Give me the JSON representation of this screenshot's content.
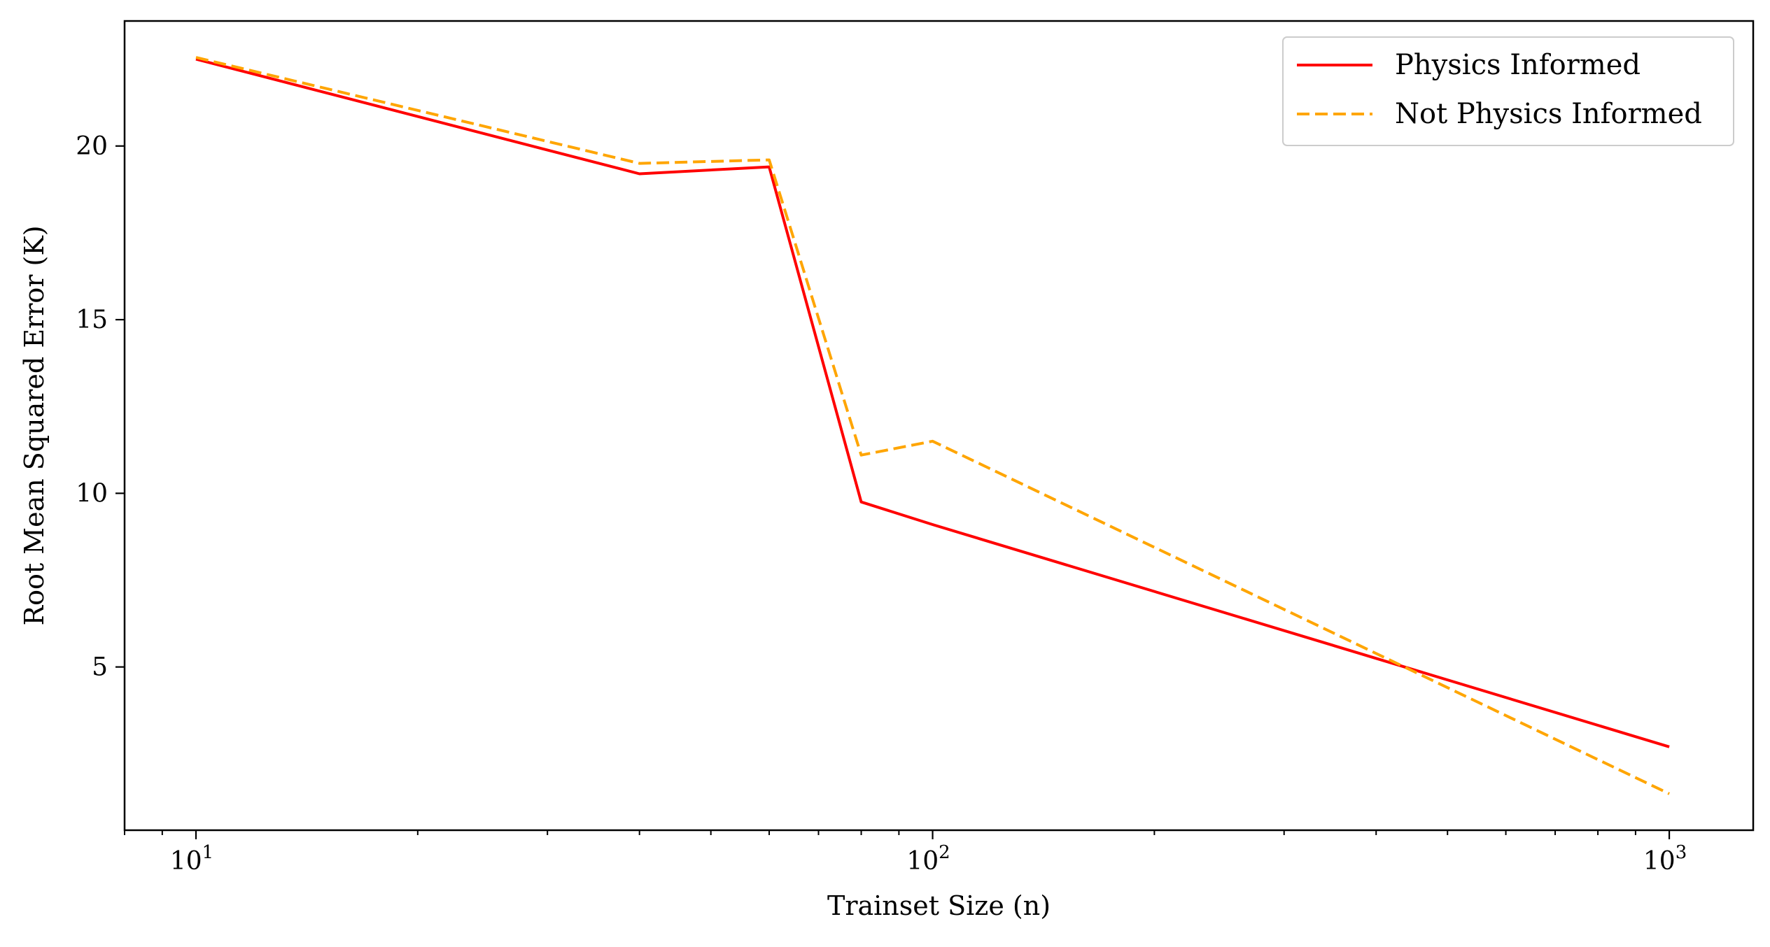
{
  "chart_data": {
    "type": "line",
    "xscale": "log",
    "xlabel": "Trainset Size (n)",
    "ylabel": "Root Mean Squared Error (K)",
    "xlim": [
      8,
      1300
    ],
    "ylim": [
      0.3,
      23.6
    ],
    "x_ticks": [
      {
        "value": 10,
        "base": "10",
        "exp": "1"
      },
      {
        "value": 100,
        "base": "10",
        "exp": "2"
      },
      {
        "value": 1000,
        "base": "10",
        "exp": "3"
      }
    ],
    "y_ticks": [
      {
        "value": 5,
        "label": "5"
      },
      {
        "value": 10,
        "label": "10"
      },
      {
        "value": 15,
        "label": "15"
      },
      {
        "value": 20,
        "label": "20"
      }
    ],
    "grid": false,
    "legend_position": "top-right",
    "series": [
      {
        "name": "Physics Informed",
        "color": "#ff0000",
        "style": "solid",
        "x": [
          10,
          40,
          60,
          80,
          100,
          1000
        ],
        "y": [
          22.5,
          19.2,
          19.4,
          9.75,
          9.1,
          2.7
        ]
      },
      {
        "name": "Not Physics Informed",
        "color": "#ffa500",
        "style": "dashed",
        "x": [
          10,
          40,
          60,
          80,
          100,
          1000
        ],
        "y": [
          22.55,
          19.5,
          19.6,
          11.1,
          11.5,
          1.35
        ]
      }
    ]
  }
}
